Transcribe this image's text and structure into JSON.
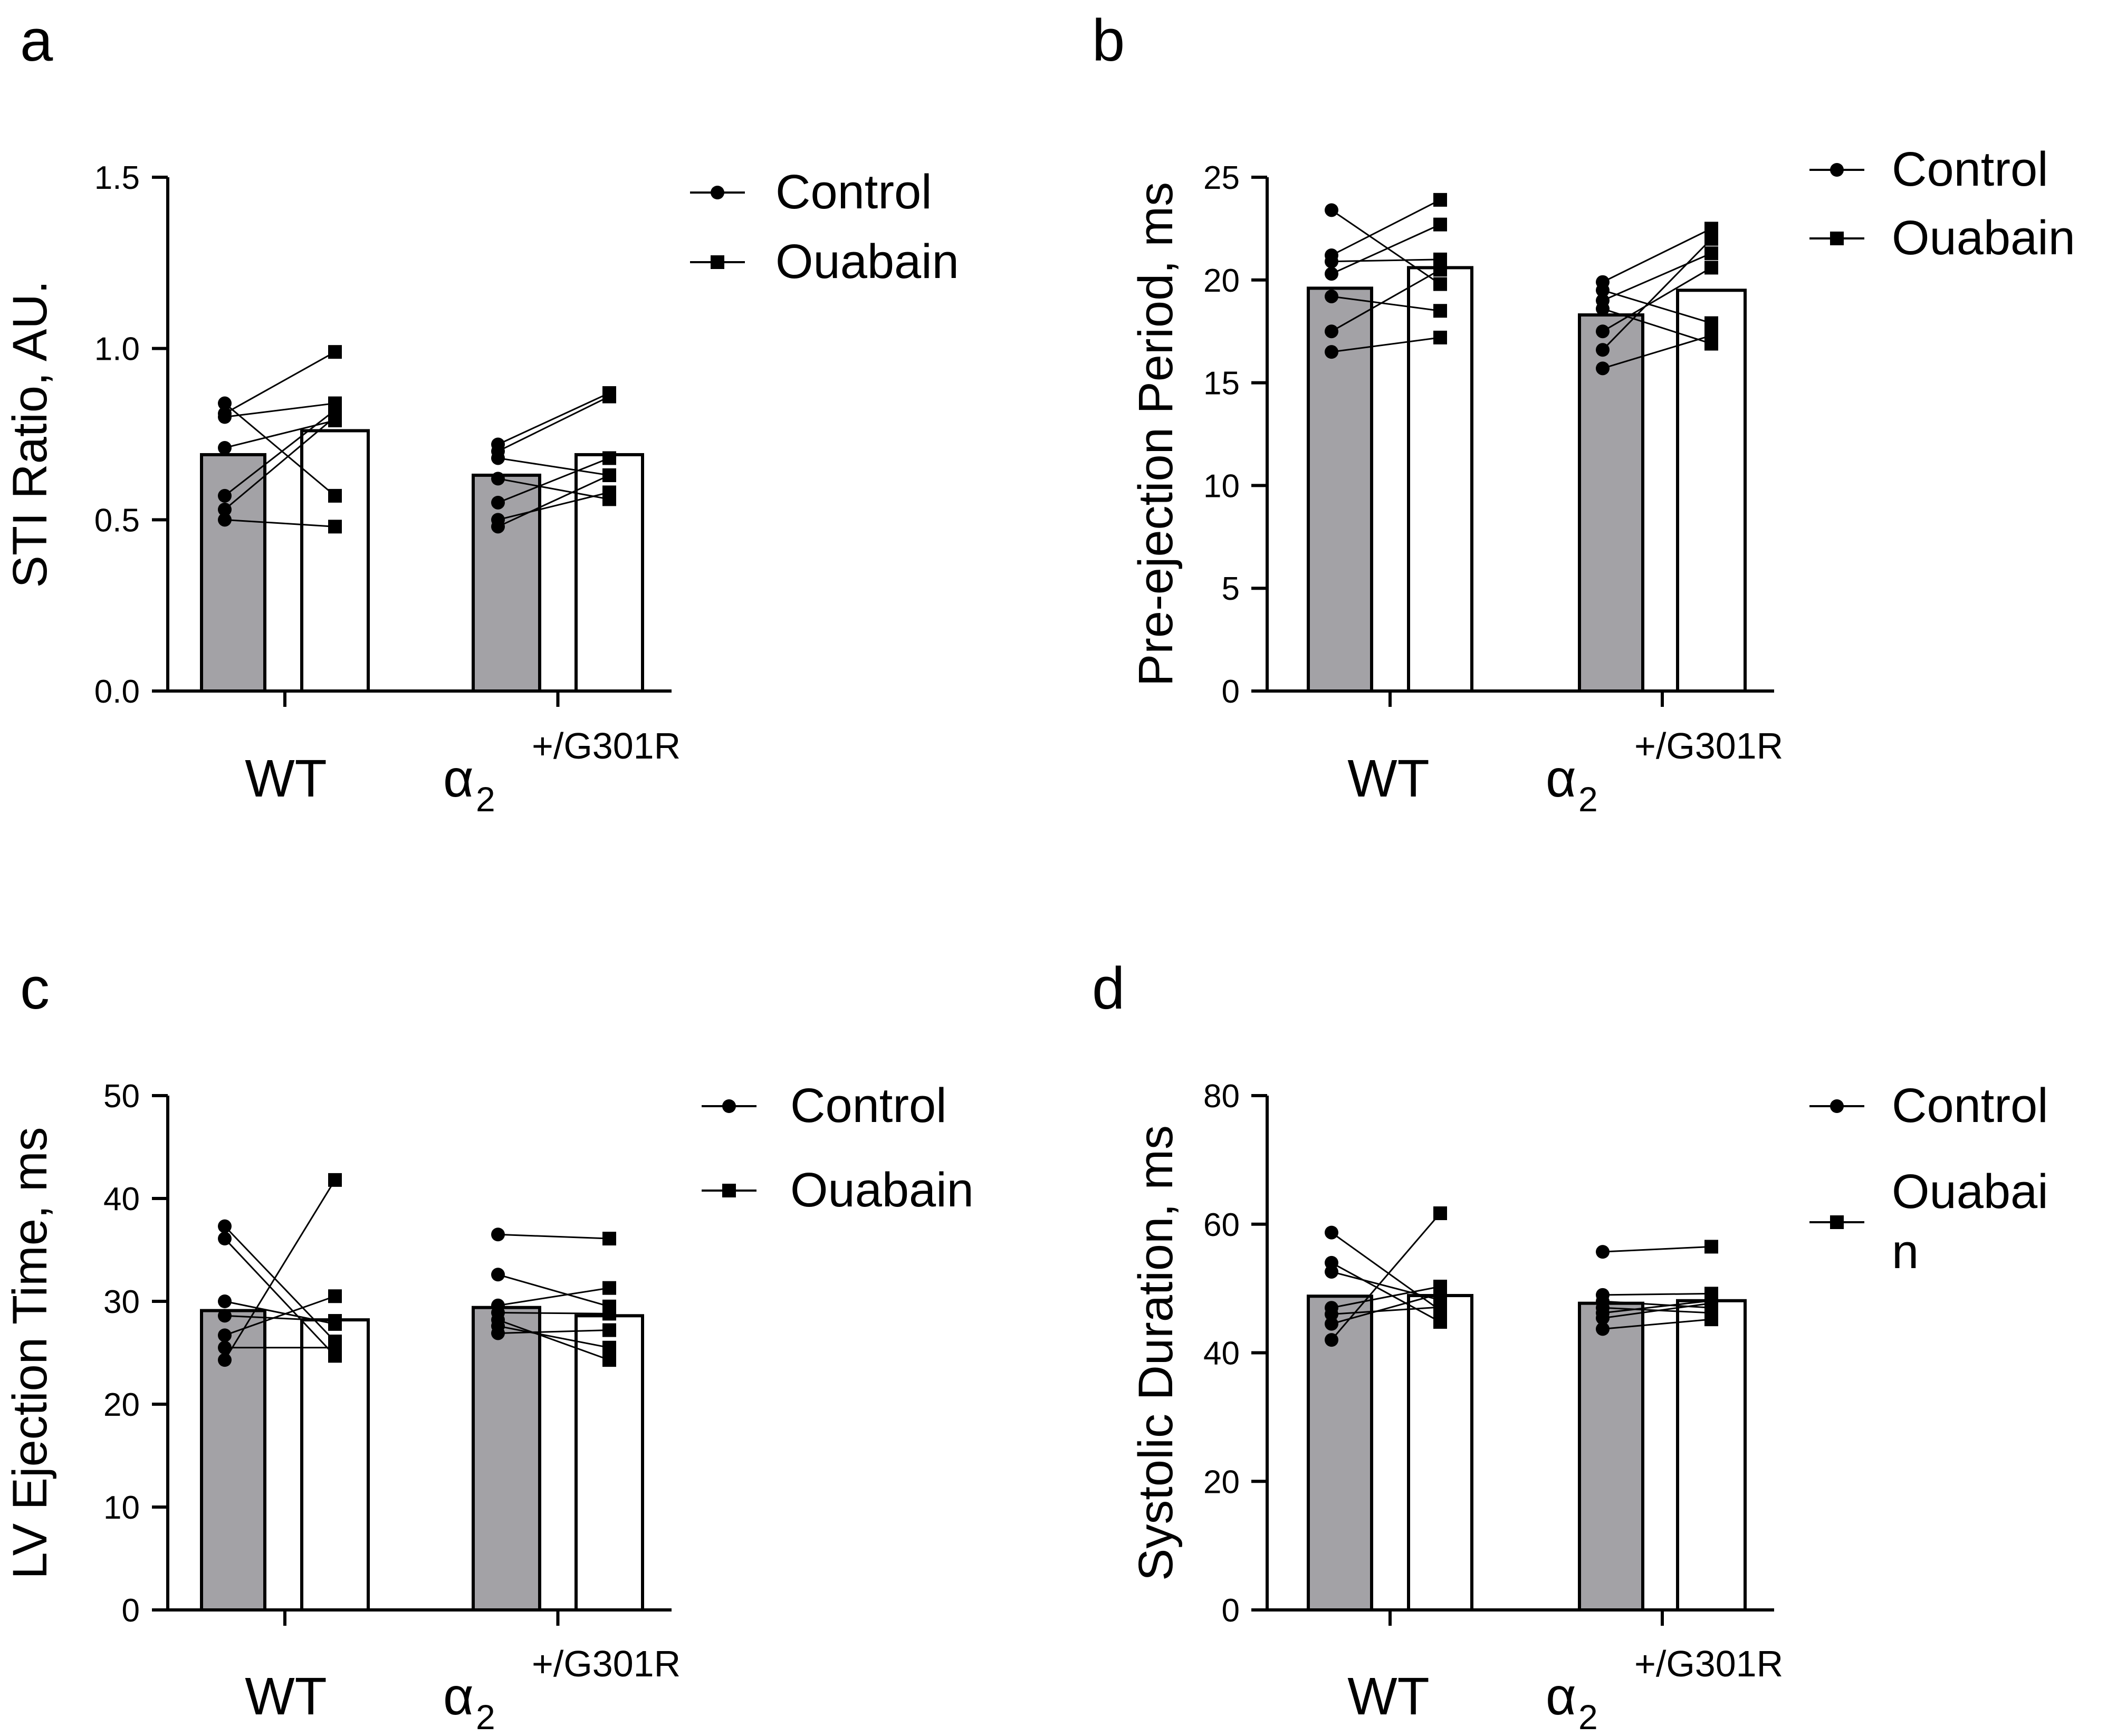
{
  "colors": {
    "control_bar": "#a3a2a6",
    "ouabain_bar": "#ffffff",
    "ink": "#000000"
  },
  "legend": {
    "control": "Control",
    "ouabain": "Ouabain"
  },
  "legend_d": {
    "ouabain_line1": "Ouabai",
    "ouabain_line2": "n"
  },
  "groups": {
    "wt": "WT",
    "mut_base": "α",
    "mut_sub": "2",
    "mut_sup": "+/G301R"
  },
  "chart_data": [
    {
      "panel": "a",
      "type": "bar",
      "title": "",
      "ylabel": "STI Ratio, AU.",
      "xlabel": "",
      "ylim": [
        0,
        1.5
      ],
      "yticks": [
        "0.0",
        "0.5",
        "1.0",
        "1.5"
      ],
      "categories": [
        "WT",
        "α2+/G301R"
      ],
      "series": [
        {
          "name": "Control",
          "values": [
            0.69,
            0.63
          ]
        },
        {
          "name": "Ouabain",
          "values": [
            0.76,
            0.69
          ]
        }
      ],
      "pairs": [
        [
          [
            0.84,
            0.57
          ],
          [
            0.8,
            0.84
          ],
          [
            0.81,
            0.99
          ],
          [
            0.71,
            0.79
          ],
          [
            0.57,
            0.82
          ],
          [
            0.53,
            0.8
          ],
          [
            0.5,
            0.48
          ]
        ],
        [
          [
            0.72,
            0.87
          ],
          [
            0.7,
            0.86
          ],
          [
            0.68,
            0.63
          ],
          [
            0.62,
            0.56
          ],
          [
            0.55,
            0.68
          ],
          [
            0.5,
            0.58
          ],
          [
            0.48,
            0.63
          ]
        ]
      ]
    },
    {
      "panel": "b",
      "type": "bar",
      "title": "",
      "ylabel": "Pre-ejection Period, ms",
      "xlabel": "",
      "ylim": [
        0,
        25
      ],
      "yticks": [
        "0",
        "5",
        "10",
        "15",
        "20",
        "25"
      ],
      "categories": [
        "WT",
        "α2+/G301R"
      ],
      "series": [
        {
          "name": "Control",
          "values": [
            19.6,
            18.3
          ]
        },
        {
          "name": "Ouabain",
          "values": [
            20.6,
            19.5
          ]
        }
      ],
      "pairs": [
        [
          [
            23.4,
            19.8
          ],
          [
            21.2,
            23.9
          ],
          [
            20.9,
            21.0
          ],
          [
            20.3,
            22.7
          ],
          [
            19.2,
            18.5
          ],
          [
            17.5,
            20.5
          ],
          [
            16.5,
            17.2
          ]
        ],
        [
          [
            19.9,
            22.5
          ],
          [
            19.5,
            17.9
          ],
          [
            19.0,
            21.3
          ],
          [
            18.6,
            16.9
          ],
          [
            17.5,
            20.6
          ],
          [
            16.6,
            22.0
          ],
          [
            15.7,
            17.3
          ]
        ]
      ]
    },
    {
      "panel": "c",
      "type": "bar",
      "title": "",
      "ylabel": "LV Ejection Time, ms",
      "xlabel": "",
      "ylim": [
        0,
        50
      ],
      "yticks": [
        "0",
        "10",
        "20",
        "30",
        "40",
        "50"
      ],
      "categories": [
        "WT",
        "α2+/G301R"
      ],
      "series": [
        {
          "name": "Control",
          "values": [
            29.1,
            29.4
          ]
        },
        {
          "name": "Ouabain",
          "values": [
            28.2,
            28.6
          ]
        }
      ],
      "pairs": [
        [
          [
            37.3,
            26.1
          ],
          [
            36.1,
            24.7
          ],
          [
            30.0,
            27.8
          ],
          [
            28.6,
            28.1
          ],
          [
            26.7,
            30.5
          ],
          [
            25.5,
            25.5
          ],
          [
            24.3,
            41.8
          ]
        ],
        [
          [
            36.5,
            36.1
          ],
          [
            32.6,
            29.5
          ],
          [
            29.6,
            31.3
          ],
          [
            28.9,
            28.8
          ],
          [
            28.2,
            24.3
          ],
          [
            27.6,
            25.5
          ],
          [
            26.9,
            27.2
          ]
        ]
      ]
    },
    {
      "panel": "d",
      "type": "bar",
      "title": "",
      "ylabel": "Systolic Duration, ms",
      "xlabel": "",
      "ylim": [
        0,
        80
      ],
      "yticks": [
        "0",
        "20",
        "40",
        "60",
        "80"
      ],
      "categories": [
        "WT",
        "α2+/G301R"
      ],
      "series": [
        {
          "name": "Control",
          "values": [
            48.8,
            47.7
          ]
        },
        {
          "name": "Ouabain",
          "values": [
            48.9,
            48.1
          ]
        }
      ],
      "pairs": [
        [
          [
            58.7,
            46.6
          ],
          [
            54.0,
            44.8
          ],
          [
            52.6,
            48.2
          ],
          [
            47.0,
            50.3
          ],
          [
            46.0,
            47.1
          ],
          [
            44.5,
            49.2
          ],
          [
            42.0,
            61.7
          ]
        ],
        [
          [
            55.7,
            56.5
          ],
          [
            49.0,
            49.2
          ],
          [
            48.0,
            47.0
          ],
          [
            47.0,
            46.2
          ],
          [
            46.2,
            48.1
          ],
          [
            45.4,
            47.7
          ],
          [
            43.7,
            45.2
          ]
        ]
      ]
    }
  ]
}
